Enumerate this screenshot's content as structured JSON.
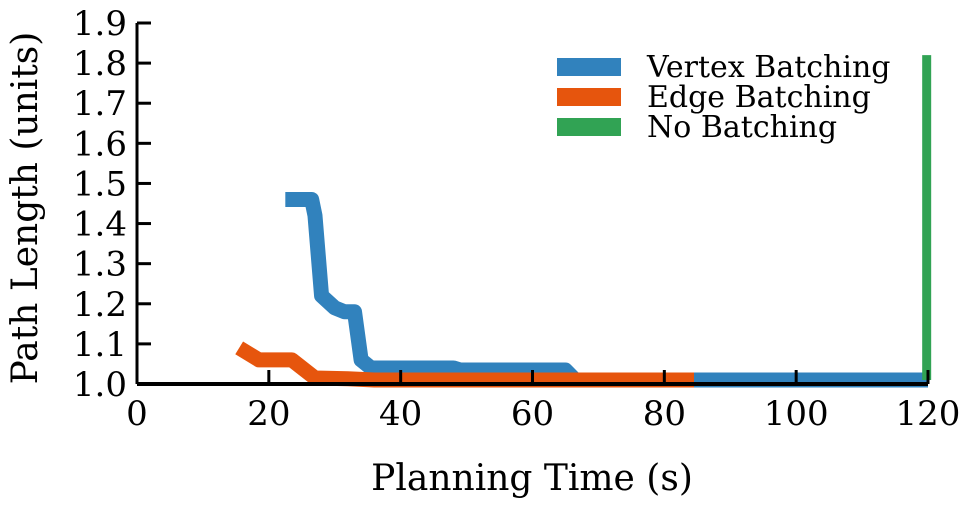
{
  "chart_data": {
    "type": "line",
    "xlabel": "Planning Time (s)",
    "ylabel": "Path Length (units)",
    "xlim": [
      0,
      120
    ],
    "ylim": [
      1.0,
      1.9
    ],
    "xticks": [
      "0",
      "20",
      "40",
      "60",
      "80",
      "100",
      "120"
    ],
    "yticks": [
      "1.0",
      "1.1",
      "1.2",
      "1.3",
      "1.4",
      "1.5",
      "1.6",
      "1.7",
      "1.8",
      "1.9"
    ],
    "grid": false,
    "legend_position": "top-right",
    "series": [
      {
        "name": "Vertex Batching",
        "color": "#3182bd",
        "points": [
          [
            22.5,
            1.46
          ],
          [
            26.5,
            1.46
          ],
          [
            27,
            1.42
          ],
          [
            28,
            1.22
          ],
          [
            30,
            1.19
          ],
          [
            31.5,
            1.18
          ],
          [
            33,
            1.18
          ],
          [
            34,
            1.06
          ],
          [
            35.5,
            1.04
          ],
          [
            48,
            1.04
          ],
          [
            49,
            1.035
          ],
          [
            65,
            1.035
          ],
          [
            66.5,
            1.01
          ],
          [
            120,
            1.01
          ]
        ]
      },
      {
        "name": "Edge Batching",
        "color": "#e6550d",
        "points": [
          [
            15.5,
            1.09
          ],
          [
            18.5,
            1.06
          ],
          [
            23.5,
            1.06
          ],
          [
            27,
            1.015
          ],
          [
            32,
            1.013
          ],
          [
            36,
            1.01
          ],
          [
            84.5,
            1.01
          ]
        ]
      },
      {
        "name": "No Batching",
        "color": "#31a354",
        "points": [
          [
            119.8,
            1.01
          ],
          [
            119.8,
            1.82
          ]
        ]
      }
    ]
  }
}
